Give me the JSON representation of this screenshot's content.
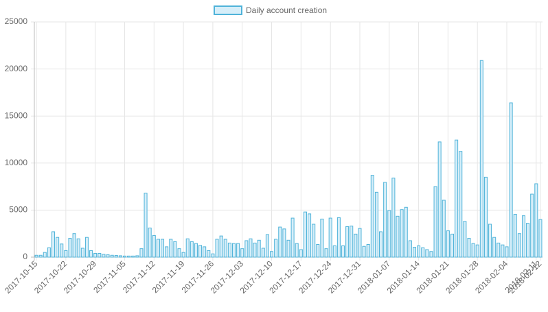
{
  "chart_data": {
    "type": "bar",
    "categories": [
      "2017-10-15",
      "2017-10-16",
      "2017-10-17",
      "2017-10-18",
      "2017-10-19",
      "2017-10-20",
      "2017-10-21",
      "2017-10-22",
      "2017-10-23",
      "2017-10-24",
      "2017-10-25",
      "2017-10-26",
      "2017-10-27",
      "2017-10-28",
      "2017-10-29",
      "2017-10-30",
      "2017-10-31",
      "2017-11-01",
      "2017-11-02",
      "2017-11-03",
      "2017-11-04",
      "2017-11-05",
      "2017-11-06",
      "2017-11-07",
      "2017-11-08",
      "2017-11-09",
      "2017-11-10",
      "2017-11-11",
      "2017-11-12",
      "2017-11-13",
      "2017-11-14",
      "2017-11-15",
      "2017-11-16",
      "2017-11-17",
      "2017-11-18",
      "2017-11-19",
      "2017-11-20",
      "2017-11-21",
      "2017-11-22",
      "2017-11-23",
      "2017-11-24",
      "2017-11-25",
      "2017-11-26",
      "2017-11-27",
      "2017-11-28",
      "2017-11-29",
      "2017-11-30",
      "2017-12-01",
      "2017-12-02",
      "2017-12-03",
      "2017-12-04",
      "2017-12-05",
      "2017-12-06",
      "2017-12-07",
      "2017-12-08",
      "2017-12-09",
      "2017-12-10",
      "2017-12-11",
      "2017-12-12",
      "2017-12-13",
      "2017-12-14",
      "2017-12-15",
      "2017-12-16",
      "2017-12-17",
      "2017-12-18",
      "2017-12-19",
      "2017-12-20",
      "2017-12-21",
      "2017-12-22",
      "2017-12-23",
      "2017-12-24",
      "2017-12-25",
      "2017-12-26",
      "2017-12-27",
      "2017-12-28",
      "2017-12-29",
      "2017-12-30",
      "2017-12-31",
      "2018-01-01",
      "2018-01-02",
      "2018-01-03",
      "2018-01-04",
      "2018-01-05",
      "2018-01-06",
      "2018-01-07",
      "2018-01-08",
      "2018-01-09",
      "2018-01-10",
      "2018-01-11",
      "2018-01-12",
      "2018-01-13",
      "2018-01-14",
      "2018-01-15",
      "2018-01-16",
      "2018-01-17",
      "2018-01-18",
      "2018-01-19",
      "2018-01-20",
      "2018-01-21",
      "2018-01-22",
      "2018-01-23",
      "2018-01-24",
      "2018-01-25",
      "2018-01-26",
      "2018-01-27",
      "2018-01-28",
      "2018-01-29",
      "2018-01-30",
      "2018-01-31",
      "2018-02-01",
      "2018-02-02",
      "2018-02-03",
      "2018-02-04",
      "2018-02-05",
      "2018-02-06",
      "2018-02-07",
      "2018-02-08",
      "2018-02-09",
      "2018-02-10",
      "2018-02-11",
      "2018-02-12"
    ],
    "series": [
      {
        "name": "Daily account creation",
        "color": "#4fb3d9",
        "values": [
          200,
          200,
          500,
          1000,
          2700,
          2100,
          1400,
          700,
          2000,
          2500,
          1950,
          950,
          2100,
          700,
          400,
          400,
          300,
          250,
          200,
          180,
          150,
          120,
          120,
          120,
          150,
          900,
          6800,
          3100,
          2300,
          1900,
          1900,
          1100,
          1900,
          1650,
          900,
          500,
          1950,
          1650,
          1450,
          1250,
          1100,
          700,
          350,
          1900,
          2250,
          1900,
          1500,
          1450,
          1450,
          900,
          1750,
          1950,
          1500,
          1800,
          950,
          2400,
          600,
          1900,
          3200,
          3000,
          1800,
          4150,
          1450,
          800,
          4800,
          4600,
          3500,
          1350,
          4050,
          900,
          4150,
          1200,
          4200,
          1200,
          3250,
          3300,
          2450,
          3050,
          1150,
          1350,
          8700,
          6900,
          2700,
          7950,
          4950,
          8400,
          4350,
          5050,
          5300,
          1750,
          1050,
          1200,
          1000,
          800,
          600,
          7500,
          12250,
          6050,
          2800,
          2450,
          12450,
          11250,
          3800,
          2000,
          1450,
          1300,
          20900,
          8500,
          3500,
          2100,
          1500,
          1300,
          1100,
          16400,
          4550,
          2500,
          4400,
          3600,
          6700,
          7800,
          4000
        ]
      }
    ],
    "ylim": [
      0,
      25000
    ],
    "yticks": [
      0,
      5000,
      10000,
      15000,
      20000,
      25000
    ],
    "grid": true,
    "legend": "top"
  }
}
